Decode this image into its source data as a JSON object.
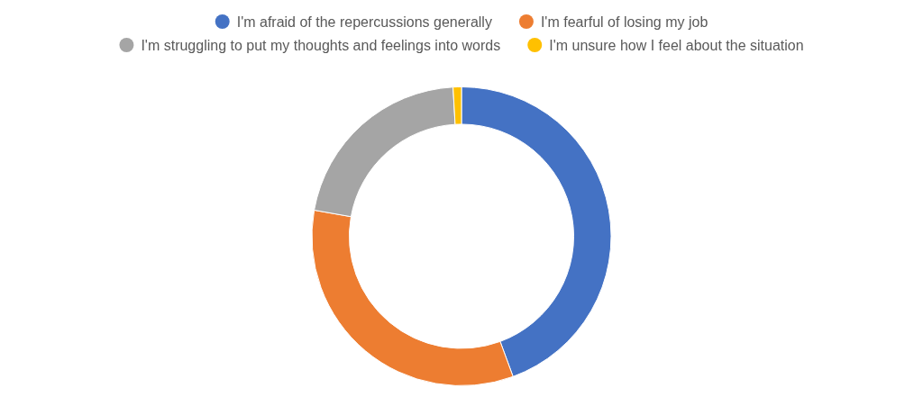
{
  "chart_data": {
    "type": "donut",
    "categories": [
      "I'm afraid of the repercussions generally",
      "I'm fearful of losing my job",
      "I'm struggling to put my thoughts and feelings into words",
      "I'm unsure how I feel about the situation"
    ],
    "values": [
      44.4,
      33.4,
      21.3,
      0.9
    ],
    "colors": [
      "#4472c4",
      "#ed7d31",
      "#a5a5a5",
      "#ffc000"
    ],
    "legend": "top"
  }
}
